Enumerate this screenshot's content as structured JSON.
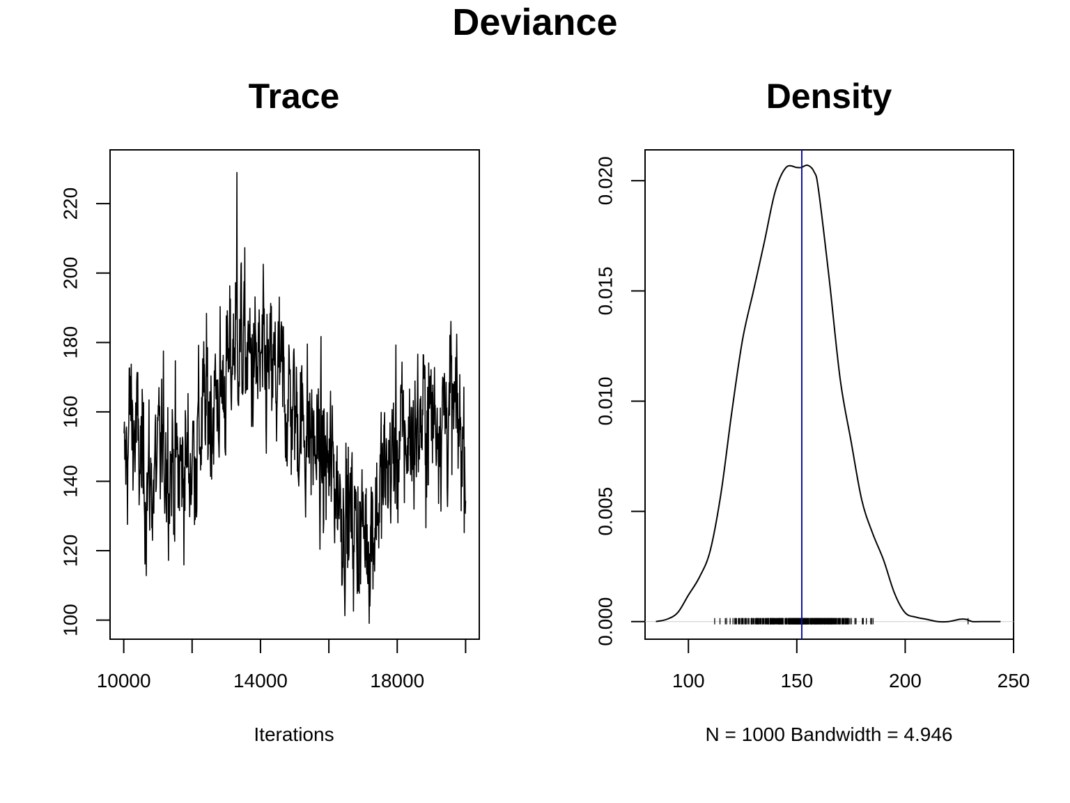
{
  "figure": {
    "title": "Deviance"
  },
  "chart_data": [
    {
      "type": "line",
      "title": "Trace",
      "xlabel": "Iterations",
      "ylabel": "",
      "xlim": [
        9600,
        20400
      ],
      "ylim": [
        94.5,
        235.5
      ],
      "xticks": [
        10000,
        12000,
        14000,
        16000,
        18000,
        20000
      ],
      "xtick_labels": [
        "10000",
        "",
        "14000",
        "",
        "18000",
        ""
      ],
      "yticks": [
        100,
        120,
        140,
        160,
        180,
        200,
        220
      ],
      "ytick_labels": [
        "100",
        "120",
        "140",
        "160",
        "180",
        "200",
        "220"
      ],
      "grid": false,
      "line_color": "#000000",
      "series": [
        {
          "x_start": 10010,
          "x_step": 10,
          "count": 1000,
          "anchors": [
            [
              10010,
              140
            ],
            [
              10200,
              160
            ],
            [
              10500,
              145
            ],
            [
              10800,
              138
            ],
            [
              11200,
              150
            ],
            [
              11600,
              142
            ],
            [
              12000,
              147
            ],
            [
              12400,
              160
            ],
            [
              12800,
              165
            ],
            [
              13100,
              172
            ],
            [
              13300,
              185
            ],
            [
              13500,
              178
            ],
            [
              13800,
              172
            ],
            [
              14200,
              170
            ],
            [
              14600,
              168
            ],
            [
              15000,
              160
            ],
            [
              15400,
              155
            ],
            [
              15800,
              145
            ],
            [
              16200,
              142
            ],
            [
              16400,
              132
            ],
            [
              16800,
              127
            ],
            [
              17200,
              125
            ],
            [
              17600,
              140
            ],
            [
              18000,
              150
            ],
            [
              18400,
              153
            ],
            [
              18800,
              158
            ],
            [
              19200,
              160
            ],
            [
              19600,
              160
            ],
            [
              20000,
              150
            ]
          ],
          "min_value": 99,
          "max_value": 229
        }
      ]
    },
    {
      "type": "line",
      "title": "Density",
      "xlabel": "N = 1000   Bandwidth = 4.946",
      "ylabel": "",
      "xlim": [
        80,
        250
      ],
      "ylim": [
        -0.0008,
        0.0214
      ],
      "xticks": [
        100,
        150,
        200,
        250
      ],
      "xtick_labels": [
        "100",
        "150",
        "200",
        "250"
      ],
      "yticks": [
        0.0,
        0.005,
        0.01,
        0.015,
        0.02
      ],
      "ytick_labels": [
        "0.000",
        "0.005",
        "0.010",
        "0.015",
        "0.020"
      ],
      "grid": false,
      "line_color": "#000000",
      "reference_line_color": "#1010a0",
      "series": [
        {
          "name": "",
          "x": [
            85,
            90,
            95,
            100,
            105,
            110,
            115,
            120,
            125,
            130,
            135,
            140,
            145,
            150,
            152,
            155,
            158,
            160,
            165,
            170,
            175,
            180,
            185,
            190,
            195,
            200,
            205,
            210,
            215,
            220,
            225,
            228,
            231,
            235,
            244
          ],
          "y": [
            0.0,
            0.0001,
            0.0004,
            0.0012,
            0.002,
            0.0032,
            0.0058,
            0.0095,
            0.0128,
            0.015,
            0.0172,
            0.0195,
            0.0206,
            0.0206,
            0.0206,
            0.0207,
            0.0204,
            0.0196,
            0.0155,
            0.011,
            0.0082,
            0.0055,
            0.004,
            0.0028,
            0.0013,
            0.0004,
            0.0002,
            0.0001,
            0.0,
            0.0,
            0.0001,
            0.0001,
            0.0,
            0.0,
            0.0
          ]
        }
      ],
      "reference_line_x": 152.3,
      "rug_range": [
        100,
        229
      ]
    }
  ]
}
